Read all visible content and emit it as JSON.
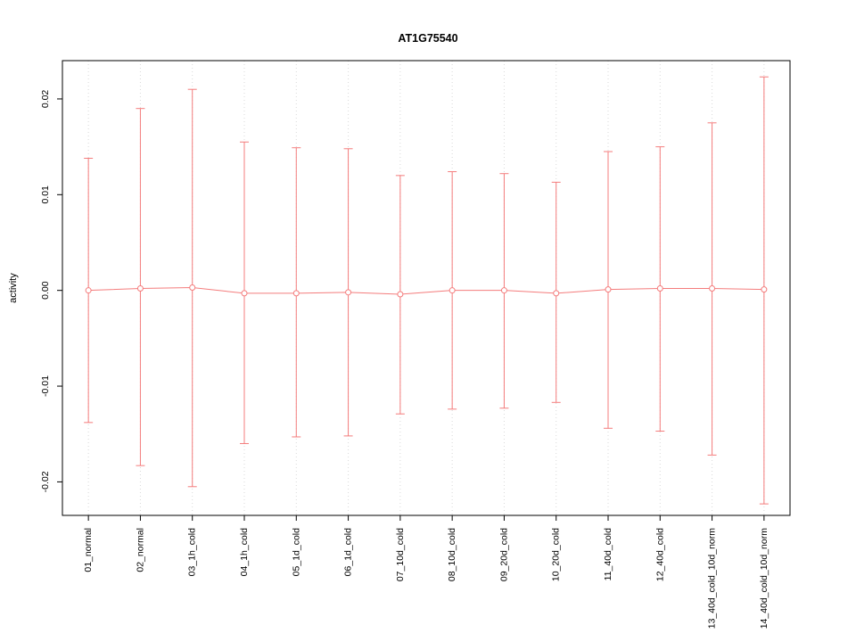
{
  "chart_data": {
    "type": "scatter",
    "title": "AT1G75540",
    "ylabel": "activity",
    "xlabel": "",
    "ylim": [
      -0.0235,
      0.024
    ],
    "yticks": [
      -0.02,
      -0.01,
      0.0,
      0.01,
      0.02
    ],
    "grid": "vertical-dotted",
    "legend": "none",
    "point_style": "open-circle-with-error-bars",
    "series_color": "#f47c7c",
    "grid_color": "#d9d9d9",
    "axis_color": "#000000",
    "categories": [
      "01_normal",
      "02_normal",
      "03_1h_cold",
      "04_1h_cold",
      "05_1d_cold",
      "06_1d_cold",
      "07_10d_cold",
      "08_10d_cold",
      "09_20d_cold",
      "10_20d_cold",
      "11_40d_cold",
      "12_40d_cold",
      "13_40d_cold_10d_norm",
      "14_40d_cold_10d_norm"
    ],
    "means": [
      0.0,
      0.0002,
      0.0003,
      -0.0003,
      -0.0003,
      -0.0002,
      -0.0004,
      0.0,
      0.0,
      -0.0003,
      0.0001,
      0.0002,
      0.0002,
      0.0001
    ],
    "upper": [
      0.0138,
      0.019,
      0.021,
      0.0155,
      0.0149,
      0.0148,
      0.012,
      0.0124,
      0.0122,
      0.0113,
      0.0145,
      0.015,
      0.0175,
      0.0223
    ],
    "lower": [
      -0.0138,
      -0.0183,
      -0.0205,
      -0.016,
      -0.0153,
      -0.0152,
      -0.0129,
      -0.0124,
      -0.0123,
      -0.0117,
      -0.0144,
      -0.0147,
      -0.0172,
      -0.0223
    ]
  }
}
